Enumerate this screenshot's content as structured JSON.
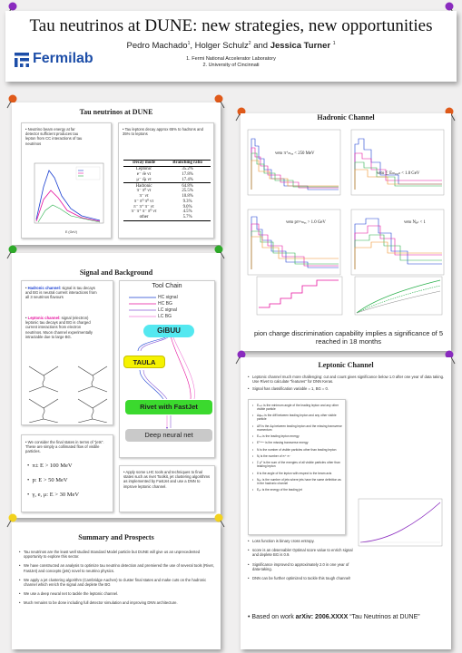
{
  "header": {
    "title": "Tau neutrinos at DUNE: new strategies, new opportunities",
    "authors": {
      "a1": "Pedro Machado",
      "a1_sup": "1",
      "a2": "Holger Schulz",
      "a2_sup": "2",
      "and": "and",
      "a3": "Jessica Turner",
      "a3_sup": "1"
    },
    "affiliations": [
      "1. Fermi National Accelerator Laboratory",
      "2. University of Cincinnati"
    ],
    "logo_text": "Fermilab"
  },
  "tau_panel": {
    "title": "Tau neutrinos at DUNE",
    "left_bullet": "Neutrino beam energy at far detector sufficient produces tau lepton  from CC interactions of tau neutrinos",
    "right_bullet": "Tau leptons  decay  approx 65% to hadrons and 35% to leptons",
    "plot_xlabel": "E (GeV)",
    "table": {
      "headers": [
        "Decay mode",
        "Branching ratio"
      ],
      "rows": [
        [
          "Leptonic",
          "35.2%"
        ],
        [
          "e⁻ ν̄e ντ",
          "17.8%"
        ],
        [
          "μ⁻ ν̄μ ντ",
          "17.4%"
        ],
        [
          "Hadronic",
          "64.8%"
        ],
        [
          "π⁻ π⁰ ντ",
          "25.5%"
        ],
        [
          "π⁻ ντ",
          "10.8%"
        ],
        [
          "π⁻ π⁰ π⁰ ντ",
          "9.3%"
        ],
        [
          "π⁻ π⁺ π⁻ ντ",
          "9.0%"
        ],
        [
          "π⁻ π⁺ π⁻ π⁰ ντ",
          "4.5%"
        ],
        [
          "other",
          "5.7%"
        ]
      ]
    }
  },
  "signal_panel": {
    "title": "Signal and Background",
    "hadronic_label": "Hadronic channel:",
    "hadronic_text": " signal is tau decays and BG is neutral current interactions from all 3 neutrinos flavours",
    "leptonic_label": "Leptonic channel:",
    "leptonic_text": " signal (electron) leptonic tau decays and BG is charged  current interactions from electron neutrinos. Muon channel experimentally intractable due to large BG.",
    "final_states": "We consider the final states in terms of \"jets\". These are simply a collimated flow of visible particles.",
    "cuts": [
      "π±  E > 100 MeV",
      "p:  E > 50 MeV",
      "γ, e, μ:  E > 30 MeV"
    ],
    "toolchain_title": "Tool Chain",
    "legend": [
      "HC signal",
      "HC BG",
      "LC signal",
      "LC BG"
    ],
    "tools": [
      "GiBUU",
      "TAULA",
      "Rivet with FastJet",
      "Deep neural net"
    ],
    "apply_text": "Apply some LHC tools and techniques to final states such as rivet Toolkit, jet clustering algorithms as implemented by FastJet and use a DNN to improve leptonic channel."
  },
  "hadronic_panel": {
    "title": "Hadronic Channel",
    "plot_labels": [
      "veto π⁺ₘₐₓ < 250 MeV",
      "veto ∑ Eₘₐₓₒₙ < 1.0 GeV",
      "veto pᴛʲᵉᵗₘₐₓ > 1.0 GeV",
      "veto Nⱼₑₜ < 1"
    ],
    "caption": "pion charge discrimination capability implies  a significance of  5 reached in 18 months"
  },
  "leptonic_panel": {
    "title": "Leptonic Channel",
    "bullets": [
      "Leptonic channel much more challenging: cut and count gives significance below 1.0 after one year of data taking. Use Rivet to calculate \"features\" for DNN Keras.",
      "Signal has classification variable = 1, BG = 0."
    ],
    "features": [
      "Eₗₑₚₜ is the minimum angle of the leading lepton and any other visible particle",
      "Δφₗₑₚ is the diff between leading lepton and any other visible particle",
      "ΔR is the Δφ between leading lepton and the missing transverse momentum",
      "Eₗₑₚ is the leading lepton energy",
      "Eᵀᵐⁱˢˢ is the missing transverse energy",
      "N is the number of visible particles other than leading lepton",
      "Nⱼ is the number of π⁺ π⁻",
      "Σ pᵀ is the sum of the energies of all visible particles other than leading lepton",
      "θ is the angle of the lepton with respect to the beam axis",
      "Nⱼₑₜ is the number of jets where jets have the same definition as in the hadronic channel",
      "Eⱼₑₜ is the energy of the leading jet"
    ],
    "right_bullets": [
      "Loss function is binary cross entropy.",
      "score is an observable! Optimal score value to enrich signal and deplete BG is 0.9.",
      "Significance improved to approximately 2.0 in one year of data-taking.",
      "DNN can be further optimized to tackle this tough channel!"
    ],
    "based_prefix": "Based on work ",
    "based_arxiv": "arXiv: 2006.XXXX",
    "based_title": " “Tau Neutrinos at DUNE”"
  },
  "summary_panel": {
    "title": "Summary and Prospects",
    "bullets": [
      "Tau neutrinos are the least well studied Standard Model particle but DUNE will give us an unprecedented opportunity  to explore this sector.",
      "We have constructed an analysis to optimize tau neutrino detection and premiered the use of several tools (Rivet, FastJet) and concepts (jets) novel to neutrino physics.",
      "We apply a jet clustering algorithm (Cambridge Aachen) to cluster final states and make cuts on the hadronic channel which enrich the signal and deplete the BG",
      "We use a deep neural net to tackle the leptonic channel.",
      "Much remains to be done including full detector simulation and improving DNN architecture."
    ]
  },
  "colors": {
    "hc_signal": "#1a3fd1",
    "hc_bg": "#e6119e",
    "lc_signal": "#8a5cd8",
    "lc_bg": "#f07ad6",
    "gibuu": "#54e8f0",
    "taula": "#f5f200",
    "rivet": "#3bd92e",
    "dnn": "#c9c9c9",
    "fermilab": "#1d4ea8"
  }
}
